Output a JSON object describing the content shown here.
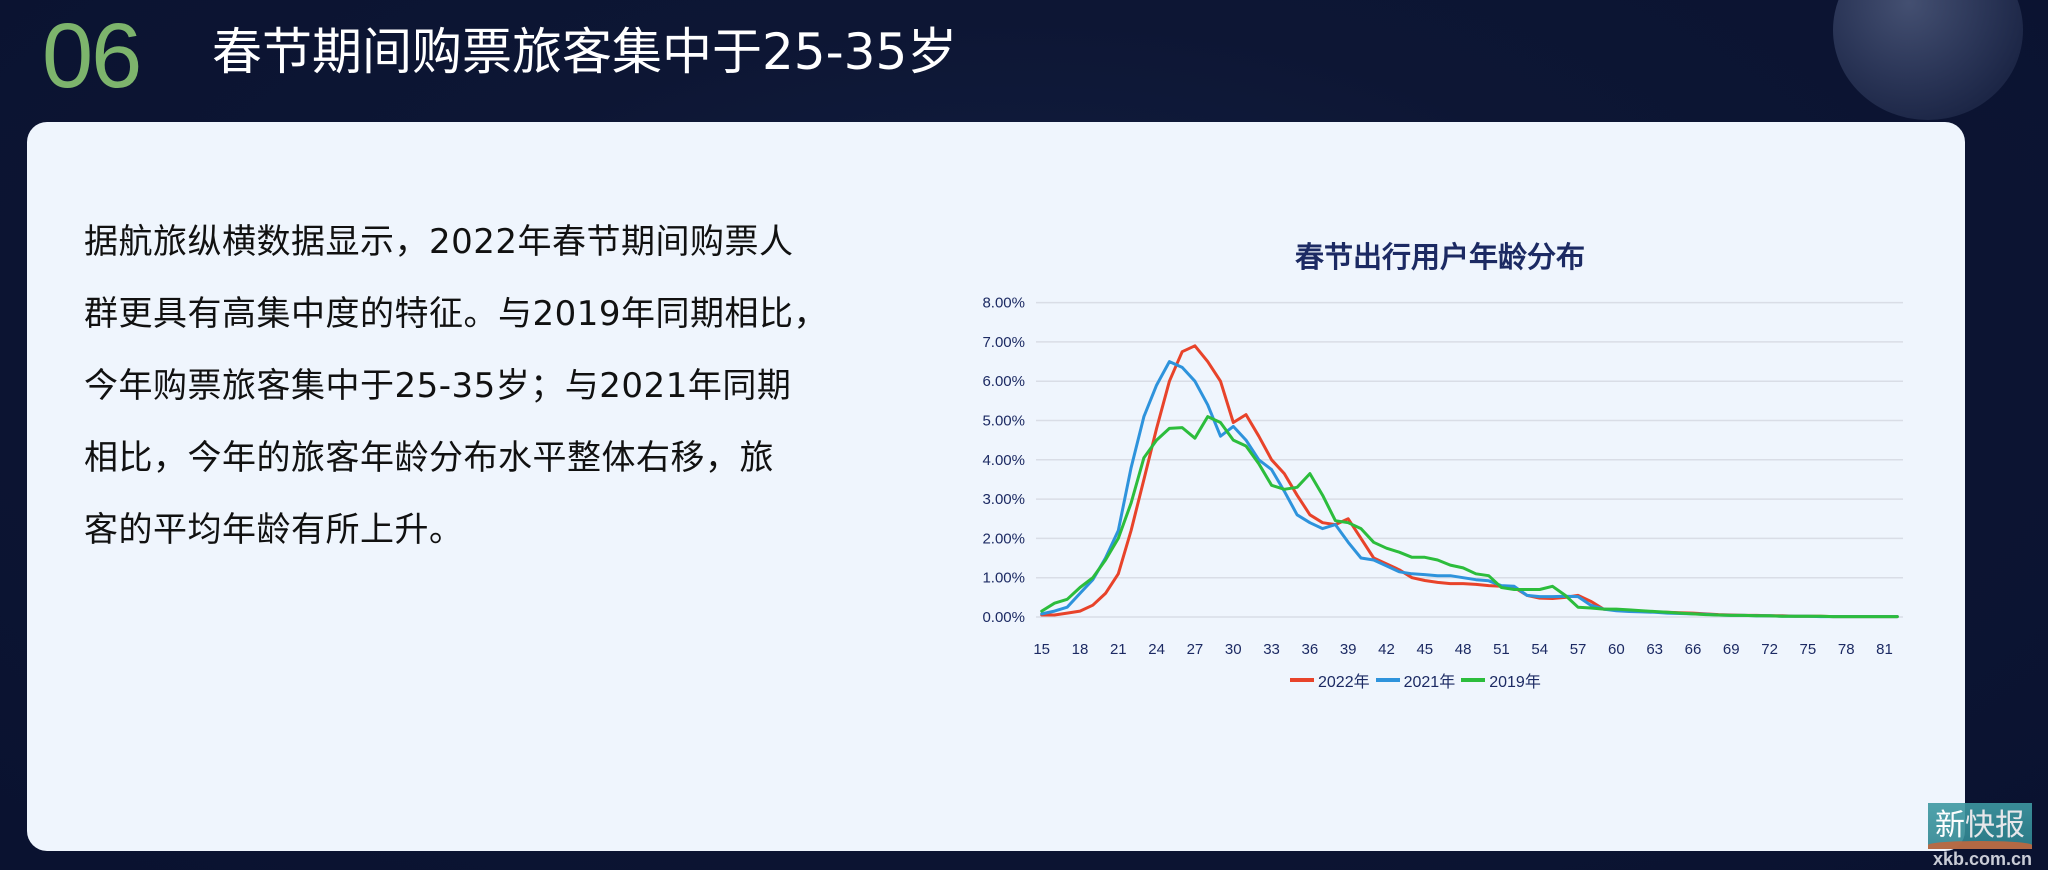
{
  "header": {
    "section_number": "06",
    "title": "春节期间购票旅客集中于25-35岁"
  },
  "body": {
    "paragraph_lines": [
      "据航旅纵横数据显示，2022年春节期间购票人",
      "群更具有高集中度的特征。与2019年同期相比，",
      "今年购票旅客集中于25-35岁；与2021年同期",
      "相比，今年的旅客年龄分布水平整体右移，旅",
      "客的平均年龄有所上升。"
    ]
  },
  "watermark": {
    "name": "新快报",
    "url": "xkb.com.cn"
  },
  "colors": {
    "background": "#0d1634",
    "card": "#eff5fd",
    "section_number": "#7db46c",
    "series_2022": "#e8432a",
    "series_2021": "#2e93dc",
    "series_2019": "#2cbd3c",
    "axis_text": "#1c2a63"
  },
  "chart_data": {
    "type": "line",
    "title": "春节出行用户年龄分布",
    "xlabel": "",
    "ylabel": "",
    "ylim": [
      0,
      8
    ],
    "y_unit": "%",
    "yticks": [
      "0.00%",
      "1.00%",
      "2.00%",
      "3.00%",
      "4.00%",
      "5.00%",
      "6.00%",
      "7.00%",
      "8.00%"
    ],
    "xticks": [
      "15",
      "18",
      "21",
      "24",
      "27",
      "30",
      "33",
      "36",
      "39",
      "42",
      "45",
      "48",
      "51",
      "54",
      "57",
      "60",
      "63",
      "66",
      "69",
      "72",
      "75",
      "78",
      "81"
    ],
    "x_start": 15,
    "x_end": 82,
    "grid": true,
    "legend_position": "bottom",
    "legend": [
      "2022年",
      "2021年",
      "2019年"
    ],
    "series": [
      {
        "name": "2022年",
        "color": "#e8432a",
        "values": [
          0.05,
          0.05,
          0.1,
          0.15,
          0.3,
          0.6,
          1.1,
          2.2,
          3.5,
          4.8,
          6.0,
          6.75,
          6.9,
          6.5,
          6.0,
          4.95,
          5.15,
          4.6,
          4.0,
          3.65,
          3.1,
          2.6,
          2.4,
          2.35,
          2.5,
          2.0,
          1.5,
          1.35,
          1.2,
          1.0,
          0.93,
          0.88,
          0.85,
          0.85,
          0.83,
          0.8,
          0.78,
          0.75,
          0.55,
          0.48,
          0.47,
          0.5,
          0.55,
          0.4,
          0.2,
          0.18,
          0.16,
          0.15,
          0.13,
          0.12,
          0.11,
          0.1,
          0.08,
          0.06,
          0.05,
          0.04,
          0.04,
          0.03,
          0.03,
          0.02,
          0.02,
          0.02,
          0.01,
          0.01,
          0.01,
          0.01,
          0.01,
          0.01
        ]
      },
      {
        "name": "2021年",
        "color": "#2e93dc",
        "values": [
          0.08,
          0.15,
          0.25,
          0.6,
          0.95,
          1.5,
          2.2,
          3.8,
          5.1,
          5.9,
          6.5,
          6.35,
          6.0,
          5.4,
          4.6,
          4.85,
          4.5,
          4.0,
          3.75,
          3.2,
          2.6,
          2.4,
          2.25,
          2.35,
          1.9,
          1.5,
          1.45,
          1.3,
          1.15,
          1.1,
          1.08,
          1.05,
          1.05,
          1.0,
          0.95,
          0.92,
          0.8,
          0.78,
          0.55,
          0.52,
          0.52,
          0.53,
          0.52,
          0.3,
          0.2,
          0.16,
          0.14,
          0.13,
          0.12,
          0.1,
          0.09,
          0.08,
          0.07,
          0.05,
          0.04,
          0.04,
          0.03,
          0.03,
          0.02,
          0.02,
          0.02,
          0.01,
          0.01,
          0.01,
          0.01,
          0.01,
          0.01,
          0.01
        ]
      },
      {
        "name": "2019年",
        "color": "#2cbd3c",
        "values": [
          0.15,
          0.35,
          0.45,
          0.75,
          1.0,
          1.45,
          2.0,
          2.9,
          4.05,
          4.5,
          4.8,
          4.82,
          4.55,
          5.1,
          4.95,
          4.5,
          4.35,
          3.9,
          3.35,
          3.25,
          3.3,
          3.65,
          3.1,
          2.45,
          2.4,
          2.25,
          1.9,
          1.75,
          1.65,
          1.52,
          1.52,
          1.45,
          1.32,
          1.25,
          1.1,
          1.05,
          0.75,
          0.7,
          0.7,
          0.7,
          0.78,
          0.55,
          0.25,
          0.23,
          0.2,
          0.2,
          0.18,
          0.16,
          0.14,
          0.12,
          0.1,
          0.08,
          0.06,
          0.05,
          0.04,
          0.04,
          0.03,
          0.03,
          0.02,
          0.02,
          0.02,
          0.02,
          0.01,
          0.01,
          0.01,
          0.01,
          0.01,
          0.01
        ]
      }
    ]
  }
}
